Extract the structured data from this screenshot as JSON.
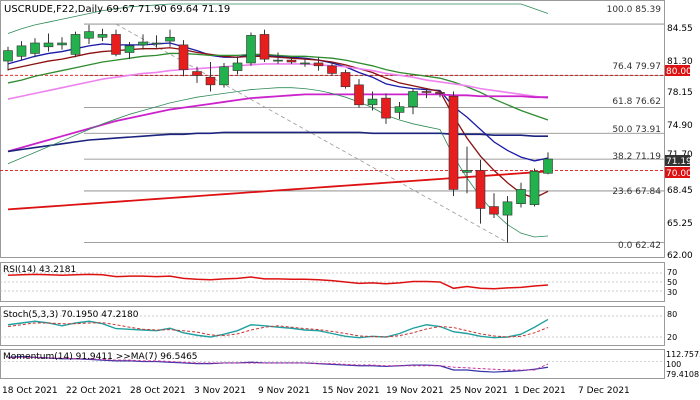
{
  "header": {
    "title": "USCRUDE,F22,Daily  69.67 71.90 69.64 71.19"
  },
  "colors": {
    "bull": "#22b14c",
    "bear": "#e61e1e",
    "ema10": "#1a1aa8",
    "ema20": "#8b1010",
    "ema30": "#2e8b2e",
    "ema55": "#ee82ee",
    "ema100": "#cc22cc",
    "ema200_blue": "#1a237e",
    "ema200_red": "#dd1111",
    "bollinger": "#2e8b57",
    "fib": "#808080",
    "price_badge_bg": "#dd1111",
    "current_badge_bg": "#333333",
    "rsi": "#dd1111",
    "stoch_k": "#20a0a0",
    "stoch_d": "#cc3333",
    "momentum": "#3333aa",
    "momentum_ma": "#cc3399"
  },
  "price_axis": {
    "ticks": [
      "84.55",
      "81.30",
      "78.15",
      "74.90",
      "71.70",
      "68.45",
      "65.25",
      "62.00"
    ],
    "badge_80": "80.00",
    "badge_70": "70.00",
    "badge_current": "71.19"
  },
  "fib_labels": {
    "f100": "100.0 85.39",
    "f764": "76.4 79.97",
    "f618": "61.8 76.62",
    "f50": "50.0 73.91",
    "f382": "38.2 71.19",
    "f236": "23.6 67.84",
    "f0": "0.0 62.42"
  },
  "x_axis": {
    "labels": [
      "18 Oct 2021",
      "22 Oct 2021",
      "28 Oct 2021",
      "3 Nov 2021",
      "9 Nov 2021",
      "15 Nov 2021",
      "19 Nov 2021",
      "25 Nov 2021",
      "1 Dec 2021",
      "7 Dec 2021"
    ]
  },
  "rsi_panel": {
    "title": "RSI(14) 43.2181",
    "ticks": [
      "70",
      "50",
      "30"
    ]
  },
  "stoch_panel": {
    "title": "Stoch(5,3,3) 70.1950 47.2180",
    "ticks": [
      "80",
      "20"
    ]
  },
  "momentum_panel": {
    "title": "Momentum(14) 91.9411  >>MA(7) 96.5465",
    "ticks": [
      "112.7575",
      "100",
      "79.4108"
    ]
  },
  "chart_data": {
    "type": "candlestick",
    "title": "USCRUDE,F22,Daily  69.67 71.90 69.64 71.19",
    "y_range": [
      61.0,
      87.5
    ],
    "x_tick_labels": [
      "18 Oct 2021",
      "22 Oct 2021",
      "28 Oct 2021",
      "3 Nov 2021",
      "9 Nov 2021",
      "15 Nov 2021",
      "19 Nov 2021",
      "25 Nov 2021",
      "1 Dec 2021",
      "7 Dec 2021"
    ],
    "candles": [
      {
        "o": 81.5,
        "h": 83.0,
        "l": 80.5,
        "c": 82.6
      },
      {
        "o": 82.0,
        "h": 83.6,
        "l": 81.6,
        "c": 83.1
      },
      {
        "o": 82.3,
        "h": 83.9,
        "l": 81.9,
        "c": 83.4
      },
      {
        "o": 83.0,
        "h": 84.4,
        "l": 82.5,
        "c": 83.4
      },
      {
        "o": 83.2,
        "h": 84.0,
        "l": 82.7,
        "c": 83.4
      },
      {
        "o": 82.2,
        "h": 84.6,
        "l": 81.9,
        "c": 84.3
      },
      {
        "o": 83.9,
        "h": 85.3,
        "l": 83.3,
        "c": 84.6
      },
      {
        "o": 84.0,
        "h": 84.9,
        "l": 83.6,
        "c": 84.3
      },
      {
        "o": 84.3,
        "h": 84.8,
        "l": 82.0,
        "c": 82.2
      },
      {
        "o": 82.4,
        "h": 83.5,
        "l": 81.7,
        "c": 83.1
      },
      {
        "o": 83.2,
        "h": 84.3,
        "l": 82.7,
        "c": 83.5
      },
      {
        "o": 83.4,
        "h": 84.2,
        "l": 82.9,
        "c": 83.4
      },
      {
        "o": 83.6,
        "h": 84.8,
        "l": 83.0,
        "c": 84.0
      },
      {
        "o": 83.2,
        "h": 83.7,
        "l": 79.9,
        "c": 80.6
      },
      {
        "o": 80.4,
        "h": 80.9,
        "l": 79.2,
        "c": 80.0
      },
      {
        "o": 79.8,
        "h": 81.4,
        "l": 78.3,
        "c": 79.0
      },
      {
        "o": 79.0,
        "h": 81.3,
        "l": 78.7,
        "c": 80.9
      },
      {
        "o": 80.5,
        "h": 82.0,
        "l": 80.1,
        "c": 81.3
      },
      {
        "o": 81.3,
        "h": 84.5,
        "l": 81.0,
        "c": 84.2
      },
      {
        "o": 84.3,
        "h": 84.8,
        "l": 81.4,
        "c": 81.7
      },
      {
        "o": 81.5,
        "h": 82.4,
        "l": 81.2,
        "c": 81.6
      },
      {
        "o": 81.6,
        "h": 81.9,
        "l": 81.2,
        "c": 81.4
      },
      {
        "o": 81.3,
        "h": 81.7,
        "l": 80.9,
        "c": 81.3
      },
      {
        "o": 81.3,
        "h": 81.9,
        "l": 80.5,
        "c": 81.0
      },
      {
        "o": 81.0,
        "h": 81.4,
        "l": 80.0,
        "c": 80.2
      },
      {
        "o": 80.3,
        "h": 80.6,
        "l": 78.6,
        "c": 78.8
      },
      {
        "o": 79.0,
        "h": 79.6,
        "l": 76.6,
        "c": 76.9
      },
      {
        "o": 76.9,
        "h": 78.3,
        "l": 76.3,
        "c": 77.5
      },
      {
        "o": 77.6,
        "h": 78.1,
        "l": 74.9,
        "c": 75.5
      },
      {
        "o": 76.1,
        "h": 77.2,
        "l": 75.4,
        "c": 76.7
      },
      {
        "o": 76.7,
        "h": 78.6,
        "l": 75.9,
        "c": 78.3
      },
      {
        "o": 78.3,
        "h": 78.6,
        "l": 77.6,
        "c": 78.2
      },
      {
        "o": 78.2,
        "h": 78.4,
        "l": 77.7,
        "c": 78.1
      },
      {
        "o": 77.8,
        "h": 78.3,
        "l": 67.3,
        "c": 68.0
      },
      {
        "o": 69.8,
        "h": 72.5,
        "l": 67.6,
        "c": 70.0
      },
      {
        "o": 70.0,
        "h": 71.1,
        "l": 64.4,
        "c": 66.0
      },
      {
        "o": 66.2,
        "h": 67.6,
        "l": 65.0,
        "c": 65.4
      },
      {
        "o": 65.3,
        "h": 67.3,
        "l": 62.4,
        "c": 66.7
      },
      {
        "o": 66.5,
        "h": 68.7,
        "l": 66.1,
        "c": 68.0
      },
      {
        "o": 66.4,
        "h": 70.2,
        "l": 66.2,
        "c": 69.9
      },
      {
        "o": 69.7,
        "h": 71.9,
        "l": 69.6,
        "c": 71.2
      }
    ],
    "series": [
      {
        "name": "ema10",
        "values": [
          81.2,
          81.6,
          82.0,
          82.3,
          82.5,
          82.8,
          83.1,
          83.3,
          83.2,
          83.2,
          83.2,
          83.3,
          83.4,
          83.0,
          82.6,
          82.1,
          81.9,
          81.9,
          82.2,
          82.1,
          82.0,
          81.9,
          81.8,
          81.6,
          81.3,
          80.9,
          80.3,
          79.8,
          79.1,
          78.8,
          78.6,
          78.5,
          78.4,
          76.7,
          75.6,
          74.3,
          73.0,
          72.1,
          71.4,
          71.0,
          71.3
        ]
      },
      {
        "name": "ema20",
        "values": [
          80.6,
          80.9,
          81.2,
          81.5,
          81.7,
          82.0,
          82.3,
          82.5,
          82.6,
          82.7,
          82.8,
          82.8,
          82.9,
          82.7,
          82.4,
          82.2,
          82.0,
          81.9,
          82.0,
          82.0,
          81.9,
          81.8,
          81.7,
          81.6,
          81.4,
          81.1,
          80.7,
          80.3,
          79.7,
          79.2,
          78.9,
          78.6,
          78.3,
          75.7,
          73.4,
          71.5,
          70.0,
          68.7,
          67.6,
          67.1,
          67.8
        ]
      },
      {
        "name": "ema30",
        "values": [
          79.2,
          79.5,
          79.9,
          80.2,
          80.5,
          80.8,
          81.1,
          81.4,
          81.6,
          81.8,
          82.0,
          82.1,
          82.3,
          82.3,
          82.2,
          82.1,
          82.1,
          82.1,
          82.2,
          82.2,
          82.1,
          82.0,
          82.0,
          81.9,
          81.8,
          81.6,
          81.3,
          81.0,
          80.6,
          80.3,
          80.1,
          79.9,
          79.7,
          79.3,
          78.8,
          78.2,
          77.5,
          76.9,
          76.3,
          75.8,
          75.3
        ]
      },
      {
        "name": "ema55",
        "values": [
          77.5,
          77.8,
          78.1,
          78.4,
          78.7,
          79.0,
          79.3,
          79.6,
          79.8,
          80.0,
          80.2,
          80.3,
          80.5,
          80.6,
          80.7,
          80.8,
          80.9,
          81.0,
          81.1,
          81.2,
          81.2,
          81.2,
          81.2,
          81.1,
          81.0,
          80.9,
          80.7,
          80.5,
          80.2,
          80.0,
          79.8,
          79.5,
          79.3,
          79.1,
          78.9,
          78.6,
          78.4,
          78.2,
          78.0,
          77.8,
          77.6
        ]
      },
      {
        "name": "ema100",
        "values": [
          72.0,
          72.4,
          72.8,
          73.2,
          73.6,
          74.0,
          74.4,
          74.8,
          75.2,
          75.5,
          75.8,
          76.1,
          76.4,
          76.6,
          76.8,
          77.0,
          77.2,
          77.4,
          77.6,
          77.7,
          77.8,
          77.9,
          78.0,
          78.0,
          78.0,
          78.0,
          78.0,
          78.0,
          78.0,
          78.0,
          78.0,
          78.0,
          78.0,
          77.9,
          77.9,
          77.8,
          77.8,
          77.8,
          77.8,
          77.7,
          77.7
        ]
      },
      {
        "name": "ema200_blue",
        "values": [
          72.0,
          72.2,
          72.4,
          72.6,
          72.8,
          73.0,
          73.2,
          73.3,
          73.4,
          73.5,
          73.6,
          73.7,
          73.8,
          73.8,
          73.9,
          73.9,
          74.0,
          74.0,
          74.0,
          74.0,
          74.0,
          74.0,
          74.0,
          74.0,
          74.0,
          74.0,
          74.0,
          73.9,
          73.9,
          73.9,
          73.9,
          73.9,
          73.9,
          73.8,
          73.8,
          73.8,
          73.7,
          73.7,
          73.7,
          73.6,
          73.6
        ]
      },
      {
        "name": "ema200_red",
        "values": [
          65.9,
          66.0,
          66.1,
          66.2,
          66.3,
          66.4,
          66.5,
          66.6,
          66.7,
          66.8,
          66.9,
          67.0,
          67.1,
          67.2,
          67.3,
          67.4,
          67.5,
          67.6,
          67.7,
          67.8,
          67.9,
          68.0,
          68.1,
          68.2,
          68.3,
          68.4,
          68.5,
          68.6,
          68.7,
          68.8,
          68.9,
          69.0,
          69.1,
          69.2,
          69.3,
          69.4,
          69.5,
          69.6,
          69.7,
          69.8,
          69.9
        ]
      },
      {
        "name": "bb_upper",
        "values": [
          84.4,
          84.9,
          85.3,
          85.6,
          85.9,
          86.2,
          86.5,
          86.8,
          87.0,
          87.2,
          87.3,
          87.4,
          87.5,
          87.5,
          87.5,
          87.5,
          87.5,
          87.5,
          87.5,
          87.5,
          87.5,
          87.5,
          87.5,
          87.5,
          87.5,
          87.5,
          87.5,
          87.5,
          87.5,
          87.5,
          87.5,
          87.5,
          87.5,
          87.5,
          87.5,
          87.5,
          87.5,
          87.5,
          87.5,
          87.0,
          86.5
        ]
      },
      {
        "name": "bb_lower",
        "values": [
          70.7,
          71.3,
          71.9,
          72.5,
          73.1,
          73.7,
          74.3,
          74.9,
          75.4,
          75.9,
          76.3,
          76.7,
          77.1,
          77.4,
          77.7,
          77.9,
          78.1,
          78.3,
          78.5,
          78.6,
          78.7,
          78.7,
          78.6,
          78.4,
          78.1,
          77.7,
          77.2,
          76.6,
          75.8,
          75.3,
          74.9,
          74.6,
          74.3,
          71.5,
          69.2,
          67.2,
          65.6,
          64.3,
          63.4,
          63.0,
          63.1
        ]
      }
    ],
    "fib_levels": [
      85.39,
      79.97,
      76.62,
      73.91,
      71.19,
      67.84,
      62.42
    ],
    "horizontal_lines": [
      80.0,
      70.0
    ],
    "rsi": [
      65,
      66,
      67,
      66,
      65,
      66,
      67,
      66,
      62,
      63,
      63,
      62,
      63,
      58,
      56,
      55,
      57,
      58,
      61,
      57,
      57,
      56,
      56,
      55,
      53,
      50,
      47,
      48,
      46,
      48,
      51,
      51,
      50,
      36,
      40,
      36,
      35,
      37,
      38,
      41,
      43.2
    ],
    "stoch_k": [
      55,
      60,
      65,
      60,
      52,
      60,
      65,
      58,
      44,
      42,
      40,
      38,
      45,
      32,
      25,
      20,
      28,
      38,
      55,
      52,
      48,
      45,
      40,
      38,
      30,
      22,
      18,
      22,
      20,
      30,
      45,
      55,
      50,
      35,
      30,
      22,
      18,
      20,
      28,
      48,
      70.2
    ],
    "stoch_d": [
      50,
      55,
      60,
      60,
      58,
      58,
      60,
      61,
      55,
      48,
      42,
      40,
      41,
      38,
      34,
      26,
      24,
      29,
      40,
      48,
      52,
      48,
      44,
      41,
      36,
      30,
      23,
      21,
      20,
      24,
      32,
      43,
      50,
      47,
      38,
      29,
      23,
      20,
      22,
      32,
      47.2
    ],
    "momentum": [
      106,
      107,
      106,
      105,
      104,
      104,
      103,
      102,
      101,
      101,
      100,
      100,
      99,
      98,
      97,
      97,
      98,
      98,
      99,
      98,
      98,
      98,
      98,
      97,
      96,
      95,
      94,
      94,
      93,
      94,
      95,
      95,
      94,
      88,
      88,
      86,
      85,
      86,
      87,
      89,
      91.9
    ],
    "momentum_ma": [
      105,
      106,
      106,
      105,
      105,
      104,
      104,
      103,
      102,
      102,
      101,
      101,
      100,
      99,
      98,
      98,
      98,
      98,
      98,
      98,
      98,
      98,
      98,
      97,
      97,
      96,
      95,
      95,
      94,
      94,
      94,
      94,
      94,
      92,
      91,
      90,
      89,
      88,
      88,
      88,
      96.5
    ]
  }
}
